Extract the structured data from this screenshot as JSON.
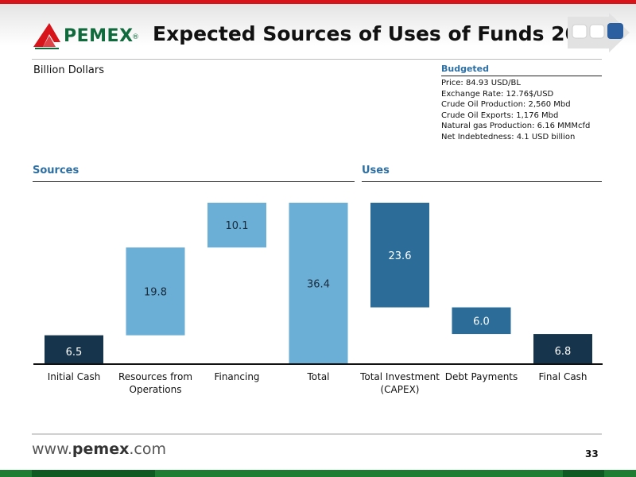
{
  "header": {
    "logo_text": "PEMEX",
    "logo_reg": "®",
    "title": "Expected Sources of Uses of Funds 2012"
  },
  "unit_label": "Billion Dollars",
  "budget": {
    "title": "Budgeted",
    "lines": [
      "Price: 84.93 USD/BL",
      "Exchange Rate: 12.76$/USD",
      "Crude Oil Production: 2,560 Mbd",
      "Crude Oil Exports: 1,176 Mbd",
      "Natural gas Production: 6.16 MMMcfd",
      "Net Indebtedness: 4.1 USD billion"
    ]
  },
  "sections": {
    "sources": "Sources",
    "uses": "Uses"
  },
  "chart_data": {
    "type": "bar",
    "subtype": "waterfall",
    "unit": "Billion Dollars",
    "ylim": [
      0,
      36.4
    ],
    "grid": false,
    "legend": "none",
    "categories": [
      "Initial Cash",
      "Resources from Operations",
      "Financing",
      "Total",
      "Total Investment (CAPEX)",
      "Debt Payments",
      "Final Cash"
    ],
    "category_lines": [
      [
        "Initial Cash"
      ],
      [
        "Resources from",
        "Operations"
      ],
      [
        "Financing"
      ],
      [
        "Total"
      ],
      [
        "Total Investment",
        "(CAPEX)"
      ],
      [
        "Debt Payments"
      ],
      [
        "Final Cash"
      ]
    ],
    "bars": [
      {
        "base": 0,
        "value": 6.5,
        "label": "6.5",
        "kind": "endpoint"
      },
      {
        "base": 6.5,
        "value": 19.8,
        "label": "19.8",
        "kind": "flow"
      },
      {
        "base": 26.3,
        "value": 10.1,
        "label": "10.1",
        "kind": "flow"
      },
      {
        "base": 0,
        "value": 36.4,
        "label": "36.4",
        "kind": "flow"
      },
      {
        "base": 12.8,
        "value": 23.6,
        "label": "23.6",
        "kind": "use"
      },
      {
        "base": 6.8,
        "value": 6.0,
        "label": "6.0",
        "kind": "use"
      },
      {
        "base": 0,
        "value": 6.8,
        "label": "6.8",
        "kind": "endpoint"
      }
    ],
    "colors": {
      "endpoint": "#16344b",
      "flow": "#6baed6",
      "use": "#2b6d98",
      "axis": "#111111"
    }
  },
  "footer": {
    "url_prefix": "www.",
    "url_brand": "pemex",
    "url_suffix": ".com",
    "page": "33"
  }
}
